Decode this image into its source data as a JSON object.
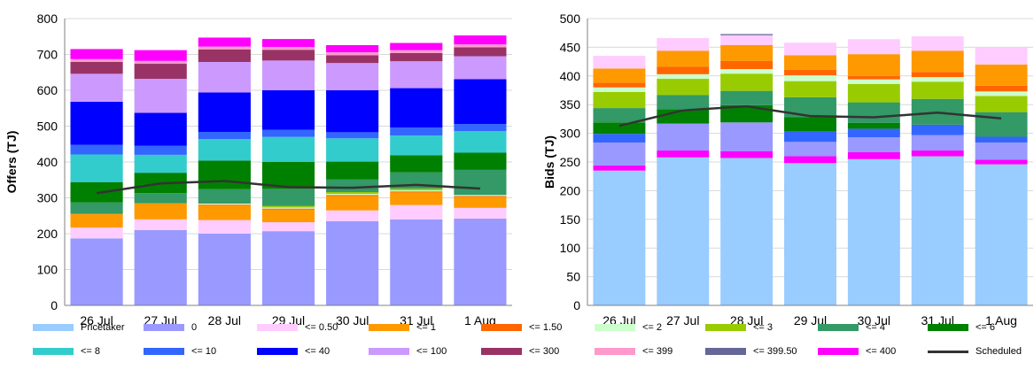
{
  "colors": {
    "Pricetaker": "#99ccff",
    "0": "#9999ff",
    "<= 0.50": "#ffccff",
    "<= 1": "#ff9900",
    "<= 1.50": "#ff6600",
    "<= 2": "#ccffcc",
    "<= 3": "#99cc00",
    "<= 4": "#339966",
    "<= 6": "#008000",
    "<= 8": "#33cccc",
    "<= 10": "#3366ff",
    "<= 40": "#0000ff",
    "<= 100": "#cc99ff",
    "<= 300": "#993366",
    "<= 399": "#ff99cc",
    "<= 399.50": "#666699",
    "<= 400": "#ff00ff",
    "Scheduled": "#333333"
  },
  "legend": {
    "row1": [
      "Pricetaker",
      "0",
      "<= 0.50",
      "<= 1",
      "<= 1.50",
      "<= 2",
      "<= 3",
      "<= 4",
      "<= 6"
    ],
    "row2": [
      "<= 8",
      "<= 10",
      "<= 40",
      "<= 100",
      "<= 300",
      "<= 399",
      "<= 399.50",
      "<= 400",
      "Scheduled"
    ]
  },
  "chart_data": [
    {
      "type": "bar",
      "stacked": true,
      "xlabel": "",
      "ylabel": "Offers (TJ)",
      "ylim": [
        0,
        800
      ],
      "yticks": [
        0,
        100,
        200,
        300,
        400,
        500,
        600,
        700,
        800
      ],
      "grid": true,
      "categories": [
        "26 Jul",
        "27 Jul",
        "28 Jul",
        "29 Jul",
        "30 Jul",
        "31 Jul",
        "1 Aug"
      ],
      "series": [
        {
          "name": "0",
          "values": [
            187,
            210,
            200,
            207,
            235,
            240,
            242
          ]
        },
        {
          "name": "<= 0.50",
          "values": [
            30,
            30,
            38,
            25,
            30,
            40,
            30
          ]
        },
        {
          "name": "<= 1",
          "values": [
            38,
            45,
            40,
            35,
            40,
            35,
            30
          ]
        },
        {
          "name": "<= 1.50",
          "values": [
            0,
            0,
            3,
            3,
            3,
            3,
            3
          ]
        },
        {
          "name": "<= 2",
          "values": [
            0,
            0,
            3,
            3,
            3,
            3,
            3
          ]
        },
        {
          "name": "<= 3",
          "values": [
            0,
            0,
            0,
            4,
            5,
            5,
            0
          ]
        },
        {
          "name": "<= 4",
          "values": [
            32,
            28,
            40,
            48,
            35,
            45,
            70
          ]
        },
        {
          "name": "<= 6",
          "values": [
            57,
            57,
            80,
            75,
            50,
            48,
            48
          ]
        },
        {
          "name": "<= 8",
          "values": [
            77,
            50,
            60,
            70,
            65,
            55,
            60
          ]
        },
        {
          "name": "<= 10",
          "values": [
            27,
            25,
            20,
            20,
            17,
            22,
            20
          ]
        },
        {
          "name": "<= 40",
          "values": [
            120,
            92,
            110,
            110,
            117,
            110,
            125
          ]
        },
        {
          "name": "<= 100",
          "values": [
            78,
            95,
            85,
            83,
            76,
            75,
            64
          ]
        },
        {
          "name": "<= 300",
          "values": [
            33,
            42,
            35,
            30,
            22,
            23,
            25
          ]
        },
        {
          "name": "<= 399",
          "values": [
            8,
            8,
            8,
            8,
            8,
            8,
            8
          ]
        },
        {
          "name": "<= 399.50",
          "values": [
            0,
            0,
            0,
            0,
            0,
            0,
            0
          ]
        },
        {
          "name": "<= 400",
          "values": [
            28,
            30,
            25,
            22,
            20,
            20,
            25
          ]
        }
      ],
      "line": {
        "name": "Scheduled",
        "values": [
          313,
          340,
          347,
          330,
          328,
          336,
          326
        ]
      }
    },
    {
      "type": "bar",
      "stacked": true,
      "xlabel": "",
      "ylabel": "Bids (TJ)",
      "ylim": [
        0,
        500
      ],
      "yticks": [
        0,
        50,
        100,
        150,
        200,
        250,
        300,
        350,
        400,
        450,
        500
      ],
      "grid": true,
      "categories": [
        "26 Jul",
        "27 Jul",
        "28 Jul",
        "29 Jul",
        "30 Jul",
        "31 Jul",
        "1 Aug"
      ],
      "series": [
        {
          "name": "Pricetaker",
          "values": [
            235,
            258,
            257,
            248,
            255,
            260,
            246
          ]
        },
        {
          "name": "<= 400",
          "values": [
            9,
            12,
            12,
            12,
            12,
            10,
            8
          ]
        },
        {
          "name": "0",
          "values": [
            40,
            47,
            50,
            25,
            26,
            27,
            30
          ]
        },
        {
          "name": "<= 10",
          "values": [
            15,
            0,
            0,
            18,
            15,
            18,
            10
          ]
        },
        {
          "name": "<= 6",
          "values": [
            20,
            25,
            30,
            25,
            10,
            0,
            0
          ]
        },
        {
          "name": "<= 4",
          "values": [
            25,
            25,
            25,
            35,
            36,
            45,
            43
          ]
        },
        {
          "name": "<= 3",
          "values": [
            28,
            28,
            30,
            28,
            32,
            30,
            28
          ]
        },
        {
          "name": "<= 2",
          "values": [
            8,
            8,
            8,
            10,
            8,
            8,
            8
          ]
        },
        {
          "name": "<= 1.50",
          "values": [
            8,
            13,
            14,
            10,
            6,
            9,
            10
          ]
        },
        {
          "name": "<= 1",
          "values": [
            25,
            28,
            28,
            25,
            38,
            37,
            37
          ]
        },
        {
          "name": "<= 0.50",
          "values": [
            22,
            22,
            17,
            22,
            26,
            25,
            29
          ]
        },
        {
          "name": "<= 399.50",
          "values": [
            0,
            0,
            2,
            0,
            0,
            0,
            0
          ]
        }
      ],
      "line": {
        "name": "Scheduled",
        "values": [
          313,
          340,
          347,
          330,
          328,
          336,
          326
        ]
      }
    }
  ]
}
